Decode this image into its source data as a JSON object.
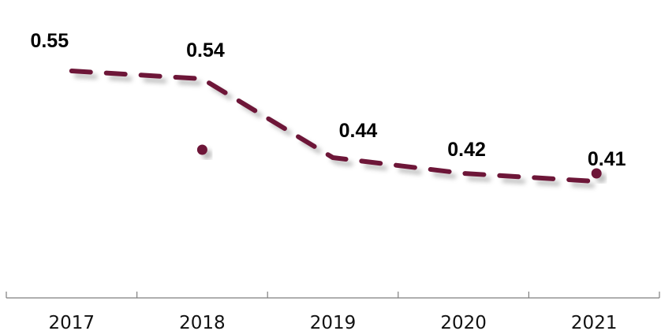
{
  "chart_data": {
    "type": "line",
    "categories": [
      "2017",
      "2018",
      "2019",
      "2020",
      "2021"
    ],
    "series": [
      {
        "values": [
          0.55,
          0.54,
          0.44,
          0.42,
          0.41
        ],
        "data_labels": [
          "0.55",
          "0.54",
          "0.44",
          "0.42",
          "0.41"
        ],
        "color": "#6d1638",
        "line_style": "dashed"
      }
    ],
    "extra_points": [
      {
        "x": "2018",
        "y": 0.45
      },
      {
        "x": "2021",
        "y": 0.42
      }
    ],
    "title": "",
    "xlabel": "",
    "ylabel": "",
    "ylim": [
      0.3,
      0.6
    ],
    "grid": false,
    "legend": "none",
    "axis_color": "#7f7f7f"
  }
}
